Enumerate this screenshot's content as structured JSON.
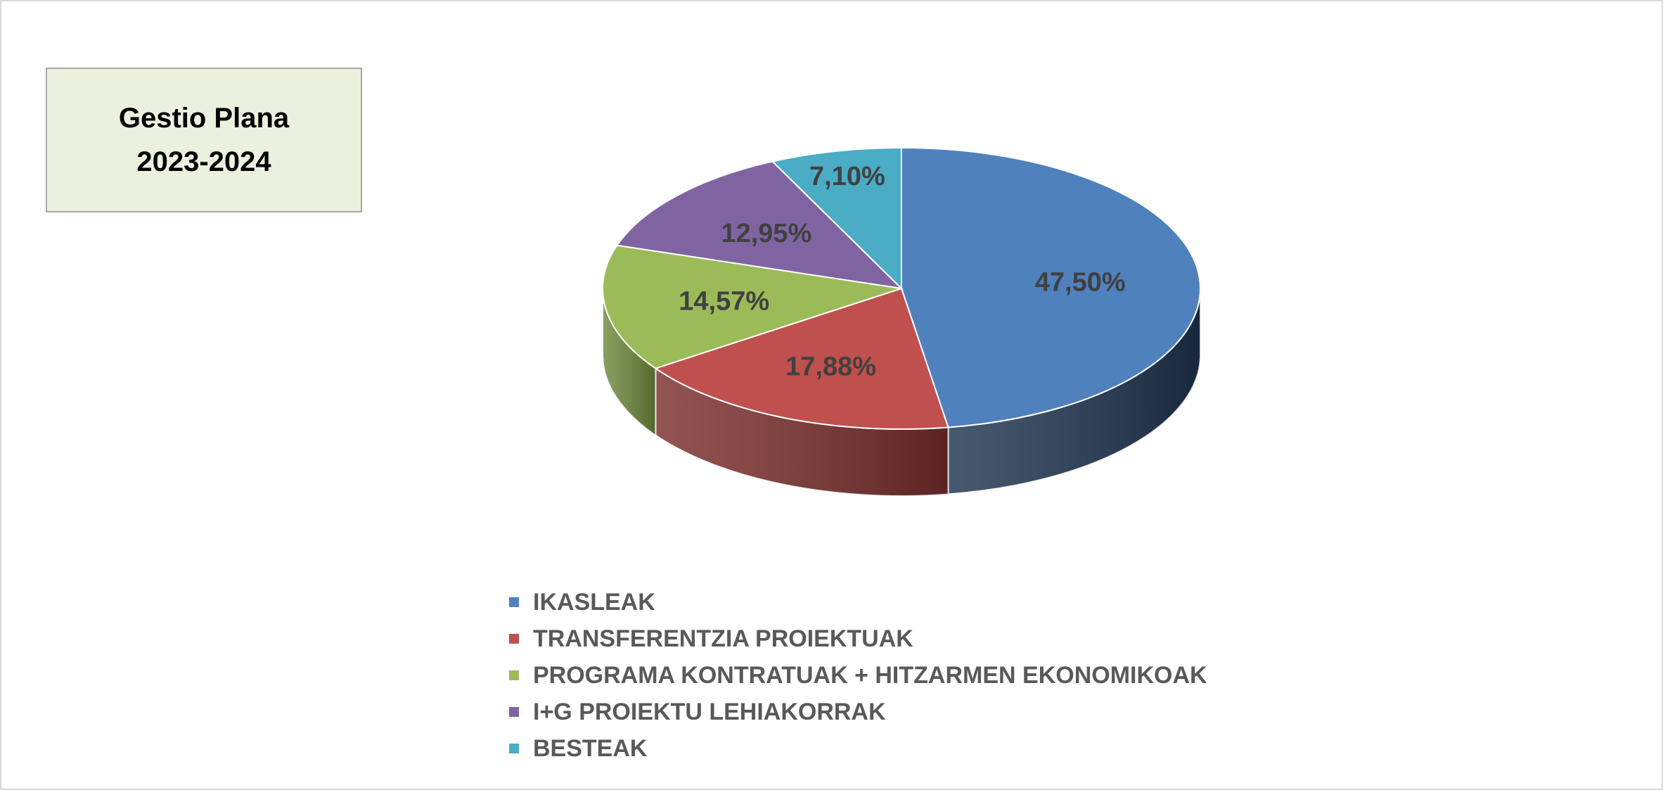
{
  "title": {
    "line1": "Gestio Plana",
    "line2": "2023-2024"
  },
  "chart_data": {
    "type": "pie",
    "style": "3d",
    "legend_position": "bottom",
    "categories": [
      "IKASLEAK",
      "TRANSFERENTZIA PROIEKTUAK",
      "PROGRAMA KONTRATUAK + HITZARMEN EKONOMIKOAK",
      "I+G PROIEKTU LEHIAKORRAK",
      "BESTEAK"
    ],
    "values": [
      47.5,
      17.88,
      14.57,
      12.95,
      7.1
    ],
    "value_labels": [
      "47,50%",
      "17,88%",
      "14,57%",
      "12,95%",
      "7,10%"
    ],
    "colors": [
      "#4f81bd",
      "#c0504d",
      "#9bbb59",
      "#8064a2",
      "#4bacc6"
    ],
    "side_colors": [
      "#1f3450",
      "#7a2e2c",
      "#6f8a3c",
      "#5a4675",
      "#327b8e"
    ]
  }
}
